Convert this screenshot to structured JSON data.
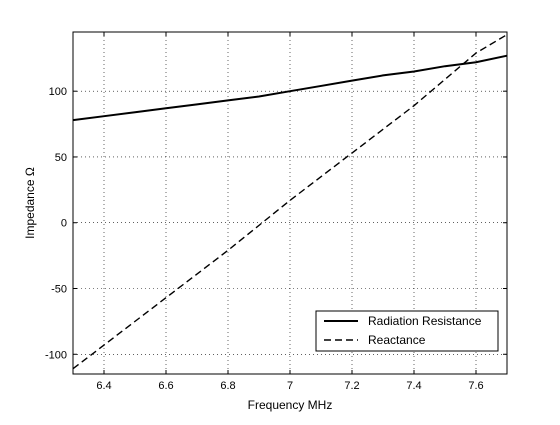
{
  "chart_data": {
    "type": "line",
    "title": "",
    "xlabel": "Frequency MHz",
    "ylabel": "Impedance Ω",
    "xlim": [
      6.3,
      7.7
    ],
    "ylim": [
      -115,
      145
    ],
    "xticks": [
      6.4,
      6.6,
      6.8,
      7,
      7.2,
      7.4,
      7.6
    ],
    "xtick_labels": [
      "6.4",
      "6.6",
      "6.8",
      "7",
      "7.2",
      "7.4",
      "7.6"
    ],
    "yticks": [
      100,
      50,
      0,
      -50,
      -100
    ],
    "ytick_labels": [
      "100",
      "50",
      "0",
      "-50",
      "-100"
    ],
    "grid": true,
    "legend_position": "bottom-right",
    "series": [
      {
        "name": "Radiation Resistance",
        "style": "solid",
        "color": "#000000",
        "x": [
          6.3,
          6.4,
          6.5,
          6.6,
          6.7,
          6.8,
          6.9,
          7.0,
          7.1,
          7.2,
          7.3,
          7.4,
          7.5,
          7.6,
          7.7
        ],
        "y": [
          78,
          81,
          84,
          87,
          90,
          93,
          96,
          100,
          104,
          108,
          112,
          115,
          119,
          122,
          127
        ]
      },
      {
        "name": "Reactance",
        "style": "dashed",
        "color": "#000000",
        "x": [
          6.3,
          6.4,
          6.5,
          6.6,
          6.7,
          6.8,
          6.9,
          7.0,
          7.1,
          7.2,
          7.3,
          7.4,
          7.5,
          7.6,
          7.7
        ],
        "y": [
          -111,
          -93,
          -75,
          -57,
          -39,
          -21,
          -2,
          17,
          35,
          53,
          71,
          89,
          109,
          129,
          143
        ]
      }
    ]
  }
}
